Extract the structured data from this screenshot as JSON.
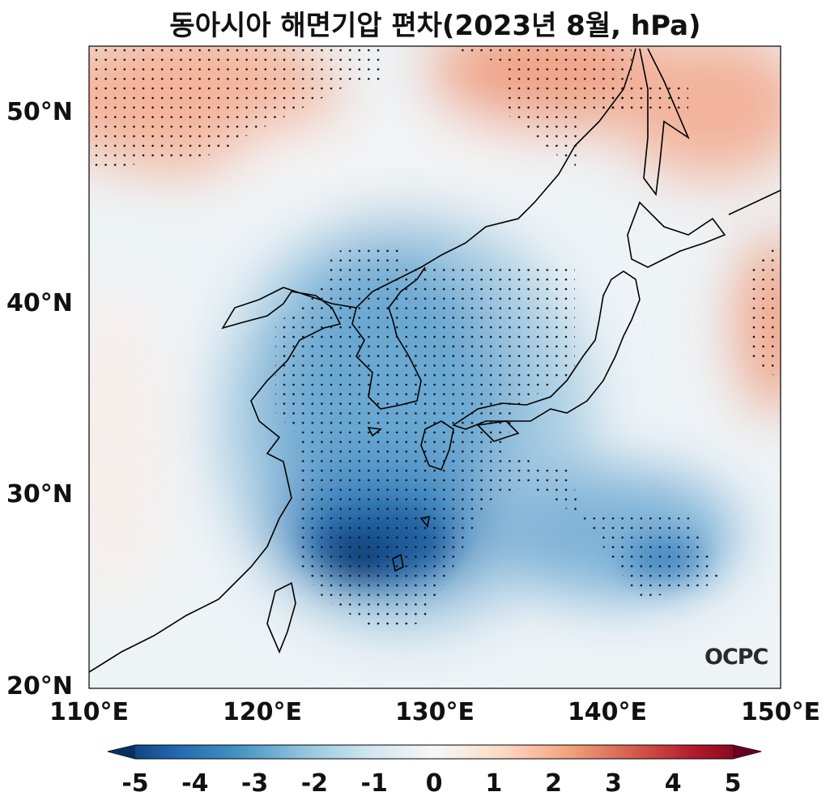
{
  "title": "동아시아 해면기압 편차(2023년 8월, hPa)",
  "map": {
    "lat_ticks": [
      "50°N",
      "40°N",
      "30°N",
      "20°N"
    ],
    "lon_ticks": [
      "110°E",
      "120°E",
      "130°E",
      "140°E",
      "150°E"
    ],
    "extent": {
      "lon": [
        110,
        150
      ],
      "lat": [
        20,
        53.5
      ]
    },
    "variable": "sea level pressure anomaly",
    "units": "hPa",
    "colormap": "RdBu_r",
    "stippling": "significant regions",
    "minimum_region": "southeast of Okinawa, approx. 26.5°N 125°E"
  },
  "colorbar": {
    "ticks": [
      "-5",
      "-4",
      "-3",
      "-2",
      "-1",
      "0",
      "1",
      "2",
      "3",
      "4",
      "5"
    ],
    "range": [
      -5,
      5
    ],
    "extend": "both",
    "colors": [
      "#053061",
      "#2166ac",
      "#4393c3",
      "#92c5de",
      "#d1e5f0",
      "#f7f7f7",
      "#fddbc7",
      "#f4a582",
      "#d6604d",
      "#b2182b",
      "#67001f"
    ]
  },
  "logo": "OCPC"
}
